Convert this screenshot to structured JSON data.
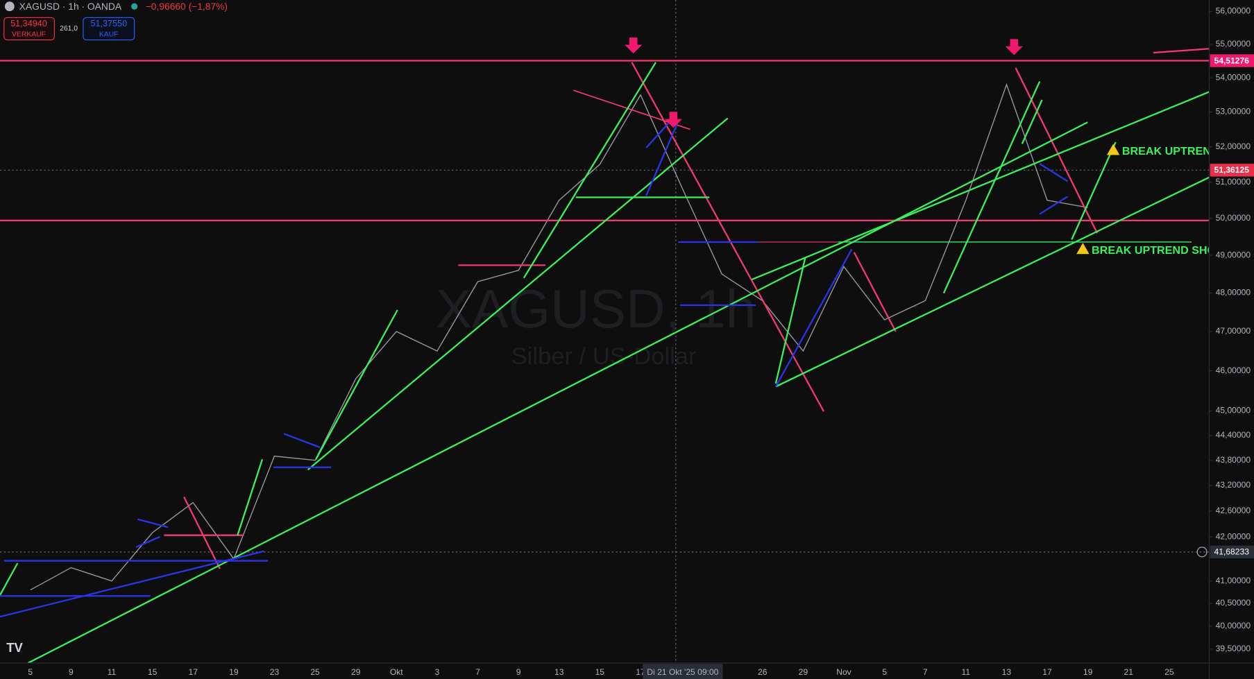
{
  "header": {
    "symbol": "XAGUSD · 1h · OANDA",
    "change": "−0,96660 (−1,87%)",
    "sell_price": "51,34940",
    "sell_label": "VERKAUF",
    "spread": "261,0",
    "buy_price": "51,37550",
    "buy_label": "KAUF"
  },
  "watermark": {
    "symbol": "XAGUSD, 1h",
    "description": "Silber / US-Dollar"
  },
  "price_tags": {
    "resistance": "54,51276",
    "last": "51,36125",
    "crosshair": "41,68233"
  },
  "annotations": [
    "BREAK UPTREND",
    "BREAK UPTREND SHO"
  ],
  "chart_data": {
    "type": "line",
    "log_scale": true,
    "categories": [
      "5",
      "9",
      "11",
      "15",
      "17",
      "19",
      "23",
      "25",
      "29",
      "Okt",
      "3",
      "7",
      "9",
      "13",
      "15",
      "17",
      "Di 21 Okt '25  09:00",
      null,
      "26",
      "29",
      "Nov",
      "5",
      "7",
      "11",
      "13",
      "17",
      "19",
      "21",
      "25"
    ],
    "series": [
      {
        "name": "XAGUSD",
        "color": "#d1d4dc",
        "values": [
          40.8,
          41.3,
          41.0,
          42.1,
          42.8,
          41.5,
          43.9,
          43.8,
          45.8,
          47.0,
          46.5,
          48.3,
          48.6,
          50.5,
          51.5,
          53.5,
          50.9,
          48.5,
          47.8,
          46.5,
          48.7,
          47.3,
          47.8,
          50.5,
          53.8,
          50.5,
          50.3,
          null,
          null
        ]
      }
    ],
    "ylim": [
      39.2,
      56.35
    ],
    "yticks": [
      {
        "value": 56,
        "label": "56,00000"
      },
      {
        "value": 55,
        "label": "55,00000"
      },
      {
        "value": 54,
        "label": "54,00000"
      },
      {
        "value": 53,
        "label": "53,00000"
      },
      {
        "value": 52,
        "label": "52,00000"
      },
      {
        "value": 51,
        "label": "51,00000"
      },
      {
        "value": 50,
        "label": "50,00000"
      },
      {
        "value": 49,
        "label": "49,00000"
      },
      {
        "value": 48,
        "label": "48,00000"
      },
      {
        "value": 47,
        "label": "47,00000"
      },
      {
        "value": 46,
        "label": "46,00000"
      },
      {
        "value": 45,
        "label": "45,00000"
      },
      {
        "value": 44.4,
        "label": "44,40000"
      },
      {
        "value": 43.8,
        "label": "43,80000"
      },
      {
        "value": 43.2,
        "label": "43,20000"
      },
      {
        "value": 42.6,
        "label": "42,60000"
      },
      {
        "value": 42,
        "label": "42,00000"
      },
      {
        "value": 41,
        "label": "41,00000"
      },
      {
        "value": 40.5,
        "label": "40,50000"
      },
      {
        "value": 40,
        "label": "40,00000"
      },
      {
        "value": 39.5,
        "label": "39,50000"
      }
    ]
  }
}
